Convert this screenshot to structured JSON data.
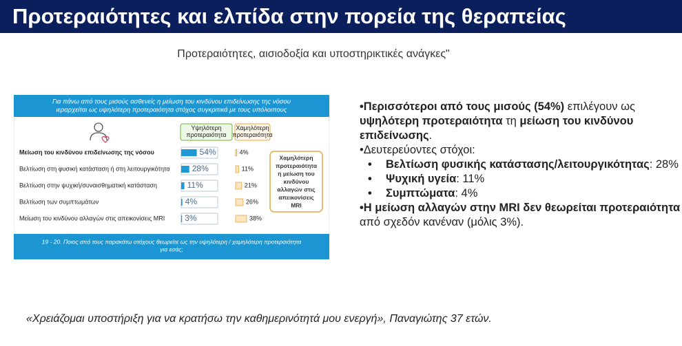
{
  "header": {
    "title": "Προτεραιότητες και ελπίδα στην πορεία της θεραπείας"
  },
  "subtitle": "Προτεραιότητες, αισιοδοξία και υποστηρικτικές ανάγκες\"",
  "chart_data": {
    "type": "bar",
    "title": [
      "Για πάνω από τους μισούς ασθενείς η μείωση του κινδύνου επιδείνωσης της νόσου",
      "ιεραρχείται ως υψηλότερη προτεραιότητα στόχος συγκριτικά με τους υπόλοιπους"
    ],
    "categories": [
      "Μείωση του κινδύνου επιδείνωσης της νόσου",
      "Βελτίωση στη φυσική κατάσταση ή στη λειτουργικότητα",
      "Βελτίωση στην ψυχική/συναισθηματική κατάσταση",
      "Βελτίωση των συμπτωμάτων",
      "Μείωση του κινδύνου αλλαγών στις απεικονίσεις MRI"
    ],
    "series": [
      {
        "name": "Υψηλότερη προτεραιότητα",
        "color": "#1f9ad6",
        "values": [
          54,
          28,
          11,
          4,
          3
        ],
        "value_labels": [
          "54%",
          "28%",
          "11%",
          "4%",
          "3%"
        ]
      },
      {
        "name": "Χαμηλότερη προτεραιότητα",
        "color": "#fde6c0",
        "values": [
          4,
          11,
          21,
          26,
          38
        ],
        "value_labels": [
          "4%",
          "11%",
          "21%",
          "26%",
          "38%"
        ]
      }
    ],
    "annotation": [
      "Χαμηλότερη",
      "προτεραιότητα",
      "η μείωση του",
      "κινδύνου",
      "αλλαγών στις",
      "απεικονίσεις",
      "MRI"
    ],
    "note": [
      "19 - 20. Ποιος από τους παρακάτω στόχους θεωρείτε ως την υψηλότερη / χαμηλότερη προτεραιότητα",
      "για εσάς;"
    ]
  },
  "bullets": [
    {
      "level": 1,
      "runs": [
        {
          "text": "•Περισσότεροι από τους μισούς (54%)",
          "bold": true
        },
        {
          "text": " επιλέγουν ως ",
          "bold": false
        },
        {
          "text": "υψηλότερη προτεραιότητα",
          "bold": true
        },
        {
          "text": " τη ",
          "bold": false
        },
        {
          "text": "μείωση του κινδύνου επιδείνωσης",
          "bold": true
        },
        {
          "text": ".",
          "bold": false
        }
      ]
    },
    {
      "level": 1,
      "runs": [
        {
          "text": "•Δευτερεύοντες στόχοι:",
          "bold": false
        }
      ]
    },
    {
      "level": 2,
      "runs": [
        {
          "text": "Βελτίωση φυσικής κατάστασης/λειτουργικότητας",
          "bold": true
        },
        {
          "text": ": 28%",
          "bold": false
        }
      ]
    },
    {
      "level": 2,
      "runs": [
        {
          "text": "Ψυχική υγεία",
          "bold": true
        },
        {
          "text": ": 11%",
          "bold": false
        }
      ]
    },
    {
      "level": 2,
      "runs": [
        {
          "text": "Συμπτώματα",
          "bold": true
        },
        {
          "text": ": 4%",
          "bold": false
        }
      ]
    },
    {
      "level": 1,
      "runs": [
        {
          "text": "•Η μείωση αλλαγών στην MRI δεν θεωρείται προτεραιότητα",
          "bold": true
        },
        {
          "text": " από σχεδόν κανέναν (μόλις 3%).",
          "bold": false
        }
      ]
    }
  ],
  "quote": "«Χρειάζομαι υποστήριξη για να κρατήσω την καθημερινότητά μου ενεργή», Παναγιώτης 37 ετών."
}
